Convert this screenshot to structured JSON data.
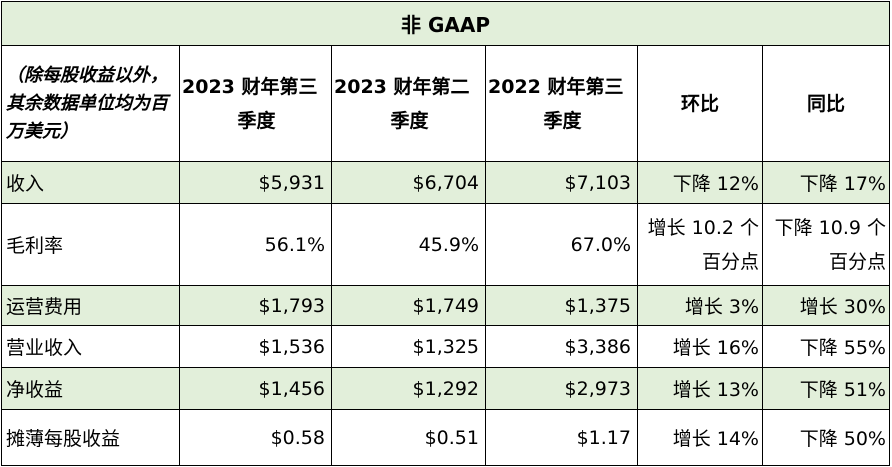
{
  "title": "非 GAAP",
  "columns": [
    "（除每股收益以外，其余数据单位均为百万美元）",
    "2023 财年第三季度",
    "2023 财年第二季度",
    "2022 财年第三季度",
    "环比",
    "同比"
  ],
  "column_parts": {
    "c2": [
      "2023 财年第三",
      "季度"
    ],
    "c3": [
      "2023 财年第二",
      "季度"
    ],
    "c4": [
      "2022 财年第三",
      "季度"
    ]
  },
  "rows": [
    {
      "label": "收入",
      "q3_fy23": "$5,931",
      "q2_fy23": "$6,704",
      "q3_fy22": "$7,103",
      "qoq": "下降 12%",
      "yoy": "下降 17%"
    },
    {
      "label": "毛利率",
      "q3_fy23": "56.1%",
      "q2_fy23": "45.9%",
      "q3_fy22": "67.0%",
      "qoq": "增长 10.2 个百分点",
      "yoy": "下降 10.9 个百分点"
    },
    {
      "label": "运营费用",
      "q3_fy23": "$1,793",
      "q2_fy23": "$1,749",
      "q3_fy22": "$1,375",
      "qoq": "增长 3%",
      "yoy": "增长 30%"
    },
    {
      "label": "营业收入",
      "q3_fy23": "$1,536",
      "q2_fy23": "$1,325",
      "q3_fy22": "$3,386",
      "qoq": "增长 16%",
      "yoy": "下降 55%"
    },
    {
      "label": "净收益",
      "q3_fy23": "$1,456",
      "q2_fy23": "$1,292",
      "q3_fy22": "$2,973",
      "qoq": "增长 13%",
      "yoy": "下降 51%"
    },
    {
      "label": "摊薄每股收益",
      "q3_fy23": "$0.58",
      "q2_fy23": "$0.51",
      "q3_fy22": "$1.17",
      "qoq": "增长 14%",
      "yoy": "下降 50%"
    }
  ],
  "colors": {
    "shade": "#e2efda",
    "border": "#000000"
  }
}
